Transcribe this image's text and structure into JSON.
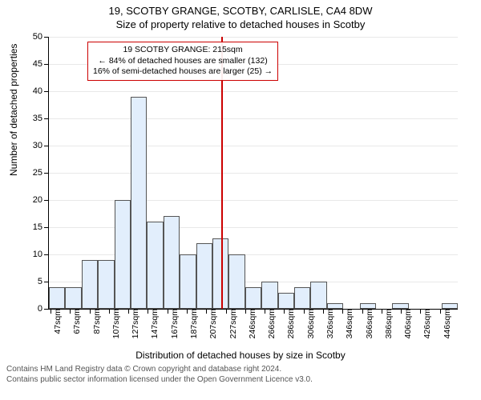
{
  "titles": {
    "main": "19, SCOTBY GRANGE, SCOTBY, CARLISLE, CA4 8DW",
    "sub": "Size of property relative to detached houses in Scotby"
  },
  "chart": {
    "type": "histogram",
    "background_color": "#ffffff",
    "grid_color": "#e8e8e8",
    "bar_fill": "#e2eefc",
    "bar_stroke": "#555555",
    "ylabel": "Number of detached properties",
    "xlabel": "Distribution of detached houses by size in Scotby",
    "ylim": [
      0,
      50
    ],
    "ytick_step": 5,
    "x_categories": [
      "47sqm",
      "67sqm",
      "87sqm",
      "107sqm",
      "127sqm",
      "147sqm",
      "167sqm",
      "187sqm",
      "207sqm",
      "227sqm",
      "246sqm",
      "266sqm",
      "286sqm",
      "306sqm",
      "326sqm",
      "346sqm",
      "366sqm",
      "386sqm",
      "406sqm",
      "426sqm",
      "446sqm"
    ],
    "values": [
      4,
      4,
      9,
      9,
      20,
      39,
      16,
      17,
      10,
      12,
      13,
      10,
      4,
      5,
      3,
      4,
      5,
      1,
      0,
      1,
      0,
      1,
      0,
      0,
      1
    ],
    "marker": {
      "x_value": 215,
      "x_min": 47,
      "x_max": 446,
      "color": "#cc0000"
    },
    "callout": {
      "line1": "19 SCOTBY GRANGE: 215sqm",
      "line2": "← 84% of detached houses are smaller (132)",
      "line3": "16% of semi-detached houses are larger (25) →",
      "border_color": "#cc0000"
    }
  },
  "footer": {
    "line1": "Contains HM Land Registry data © Crown copyright and database right 2024.",
    "line2": "Contains public sector information licensed under the Open Government Licence v3.0."
  }
}
